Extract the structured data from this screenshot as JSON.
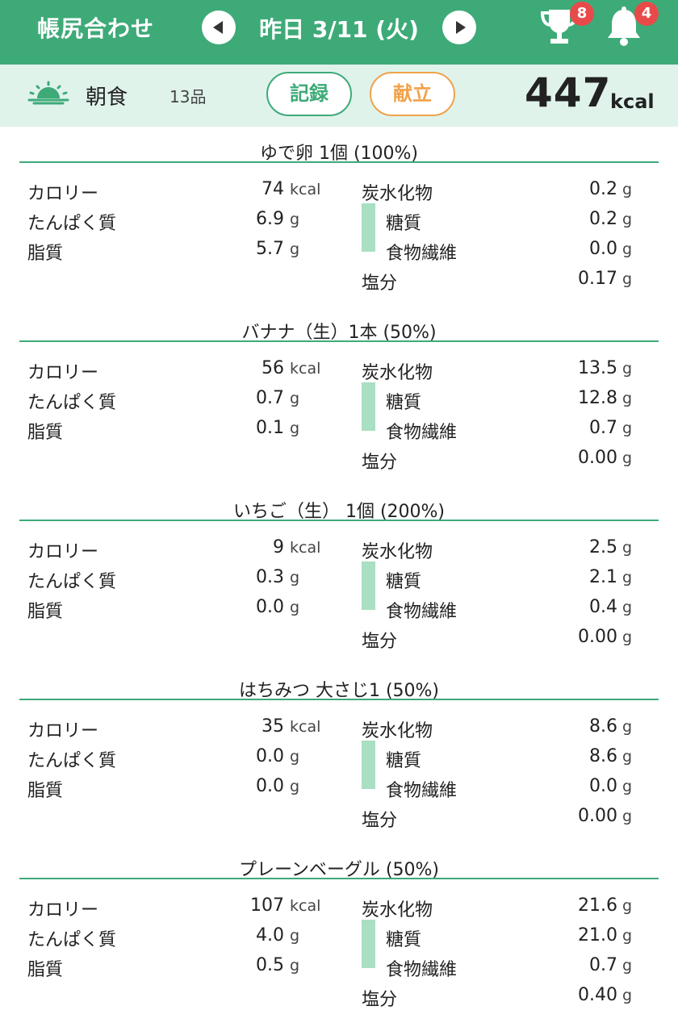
{
  "header": {
    "app_title": "帳尻合わせ",
    "date_label": "昨日 3/11 (火)",
    "trophy_count": "8",
    "bell_count": "4",
    "color": "#3eaa78"
  },
  "meal": {
    "name": "朝食",
    "item_count": "13品",
    "record_label": "記録",
    "menu_label": "献立",
    "total_kcal": "447",
    "total_unit": "kcal"
  },
  "labels": {
    "calorie": "カロリー",
    "protein": "たんぱく質",
    "fat": "脂質",
    "carbs": "炭水化物",
    "sugar": "糖質",
    "fiber": "食物繊維",
    "salt": "塩分",
    "kcal": "kcal",
    "g": "g"
  },
  "foods": [
    {
      "title": "ゆで卵 1個 (100%)",
      "calorie": "74",
      "protein": "6.9",
      "fat": "5.7",
      "carbs": "0.2",
      "sugar": "0.2",
      "fiber": "0.0",
      "salt": "0.17"
    },
    {
      "title": "バナナ（生）1本 (50%)",
      "calorie": "56",
      "protein": "0.7",
      "fat": "0.1",
      "carbs": "13.5",
      "sugar": "12.8",
      "fiber": "0.7",
      "salt": "0.00"
    },
    {
      "title": "いちご（生） 1個 (200%)",
      "calorie": "9",
      "protein": "0.3",
      "fat": "0.0",
      "carbs": "2.5",
      "sugar": "2.1",
      "fiber": "0.4",
      "salt": "0.00"
    },
    {
      "title": "はちみつ 大さじ1 (50%)",
      "calorie": "35",
      "protein": "0.0",
      "fat": "0.0",
      "carbs": "8.6",
      "sugar": "8.6",
      "fiber": "0.0",
      "salt": "0.00"
    },
    {
      "title": "プレーンベーグル (50%)",
      "calorie": "107",
      "protein": "4.0",
      "fat": "0.5",
      "carbs": "21.6",
      "sugar": "21.0",
      "fiber": "0.7",
      "salt": "0.40"
    }
  ]
}
